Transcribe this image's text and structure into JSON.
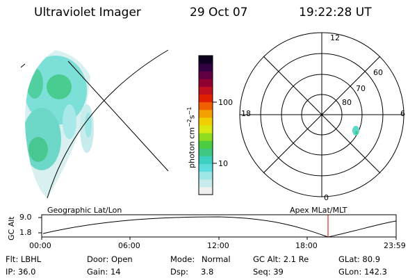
{
  "header": {
    "instrument": "Ultraviolet Imager",
    "date": "29 Oct 07",
    "time": "19:22:28 UT"
  },
  "colorbar": {
    "label_main": "photon cm",
    "label_sup1": "−2",
    "label_mid": "s",
    "label_sup2": "−1",
    "ticks": [
      "100",
      "10"
    ],
    "colors": [
      "#f0f0f0",
      "#c8ecec",
      "#9fe6e6",
      "#5fdcdc",
      "#3cd0c0",
      "#40c880",
      "#4ccc40",
      "#90dc20",
      "#d8e810",
      "#f0d000",
      "#f0a000",
      "#f06000",
      "#e02000",
      "#c01020",
      "#900030",
      "#600040",
      "#300040",
      "#100020"
    ]
  },
  "polar_plot": {
    "mlt_labels": {
      "top": "12",
      "bottom": "0",
      "left": "18",
      "right": "6"
    },
    "lat_labels": [
      "60",
      "70",
      "80"
    ]
  },
  "altitude_strip": {
    "left_caption": "Geographic Lat/Lon",
    "right_caption": "Apex MLat/MLT",
    "axis_label": "GC Alt",
    "y_ticks": [
      "9.0",
      "1.8"
    ],
    "x_ticks": [
      "00:00",
      "06:00",
      "12:00",
      "18:00",
      "23:59"
    ],
    "cursor_color": "#cc0000"
  },
  "footer": {
    "row1": {
      "flt": "Flt: LBHL",
      "door": "Door: Open",
      "mode_label": "Mode:",
      "mode_value": "Normal",
      "gc_alt": "GC Alt: 2.1 Re",
      "glat": "GLat: 80.9"
    },
    "row2": {
      "ip": "IP: 36.0",
      "gain": "Gain: 14",
      "dsp_label": "Dsp:",
      "dsp_value": "3.8",
      "seq": "Seq: 39",
      "glon": "GLon: 142.3"
    }
  }
}
